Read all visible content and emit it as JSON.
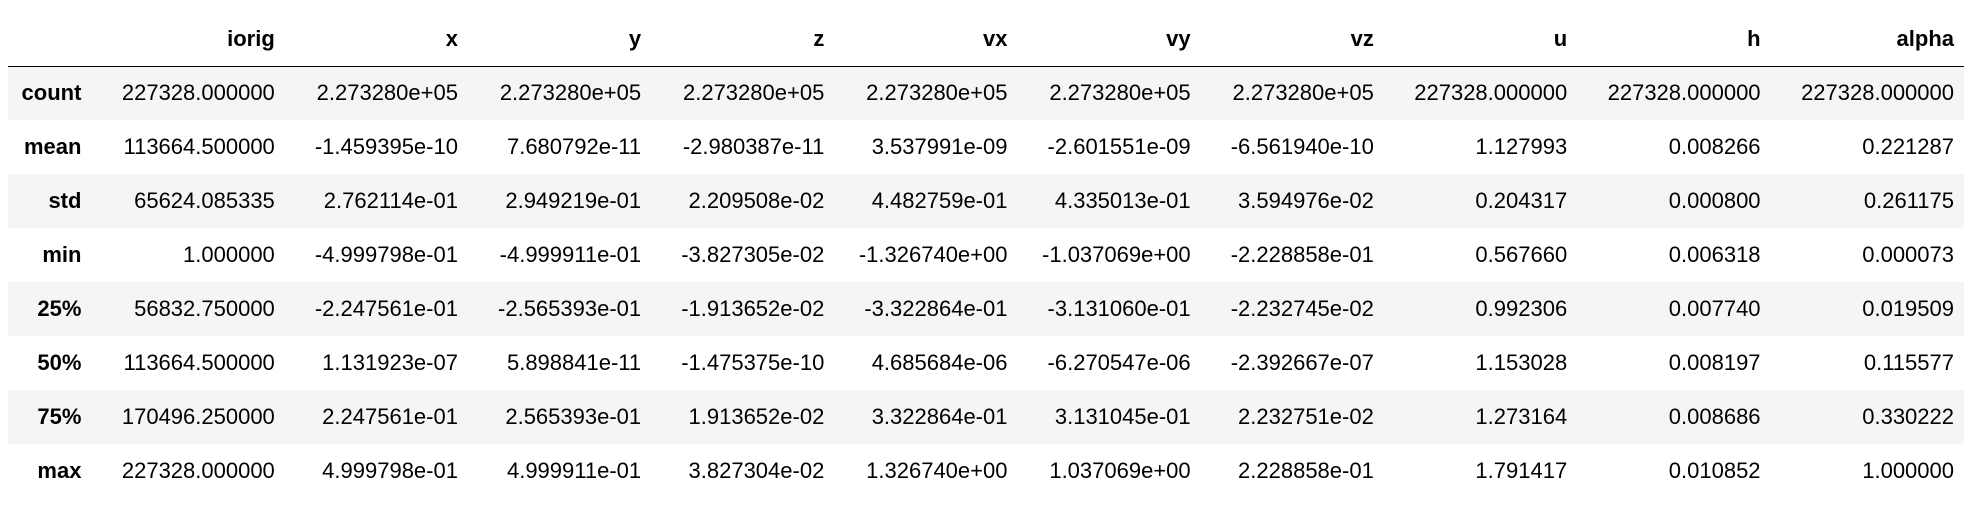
{
  "table": {
    "index_header": "",
    "columns": [
      "iorig",
      "x",
      "y",
      "z",
      "vx",
      "vy",
      "vz",
      "u",
      "h",
      "alpha"
    ],
    "rows": [
      {
        "label": "count",
        "values": [
          "227328.000000",
          "2.273280e+05",
          "2.273280e+05",
          "2.273280e+05",
          "2.273280e+05",
          "2.273280e+05",
          "2.273280e+05",
          "227328.000000",
          "227328.000000",
          "227328.000000"
        ]
      },
      {
        "label": "mean",
        "values": [
          "113664.500000",
          "-1.459395e-10",
          "7.680792e-11",
          "-2.980387e-11",
          "3.537991e-09",
          "-2.601551e-09",
          "-6.561940e-10",
          "1.127993",
          "0.008266",
          "0.221287"
        ]
      },
      {
        "label": "std",
        "values": [
          "65624.085335",
          "2.762114e-01",
          "2.949219e-01",
          "2.209508e-02",
          "4.482759e-01",
          "4.335013e-01",
          "3.594976e-02",
          "0.204317",
          "0.000800",
          "0.261175"
        ]
      },
      {
        "label": "min",
        "values": [
          "1.000000",
          "-4.999798e-01",
          "-4.999911e-01",
          "-3.827305e-02",
          "-1.326740e+00",
          "-1.037069e+00",
          "-2.228858e-01",
          "0.567660",
          "0.006318",
          "0.000073"
        ]
      },
      {
        "label": "25%",
        "values": [
          "56832.750000",
          "-2.247561e-01",
          "-2.565393e-01",
          "-1.913652e-02",
          "-3.322864e-01",
          "-3.131060e-01",
          "-2.232745e-02",
          "0.992306",
          "0.007740",
          "0.019509"
        ]
      },
      {
        "label": "50%",
        "values": [
          "113664.500000",
          "1.131923e-07",
          "5.898841e-11",
          "-1.475375e-10",
          "4.685684e-06",
          "-6.270547e-06",
          "-2.392667e-07",
          "1.153028",
          "0.008197",
          "0.115577"
        ]
      },
      {
        "label": "75%",
        "values": [
          "170496.250000",
          "2.247561e-01",
          "2.565393e-01",
          "1.913652e-02",
          "3.322864e-01",
          "3.131045e-01",
          "2.232751e-02",
          "1.273164",
          "0.008686",
          "0.330222"
        ]
      },
      {
        "label": "max",
        "values": [
          "227328.000000",
          "4.999798e-01",
          "4.999911e-01",
          "3.827304e-02",
          "1.326740e+00",
          "1.037069e+00",
          "2.228858e-01",
          "1.791417",
          "0.010852",
          "1.000000"
        ]
      }
    ]
  }
}
